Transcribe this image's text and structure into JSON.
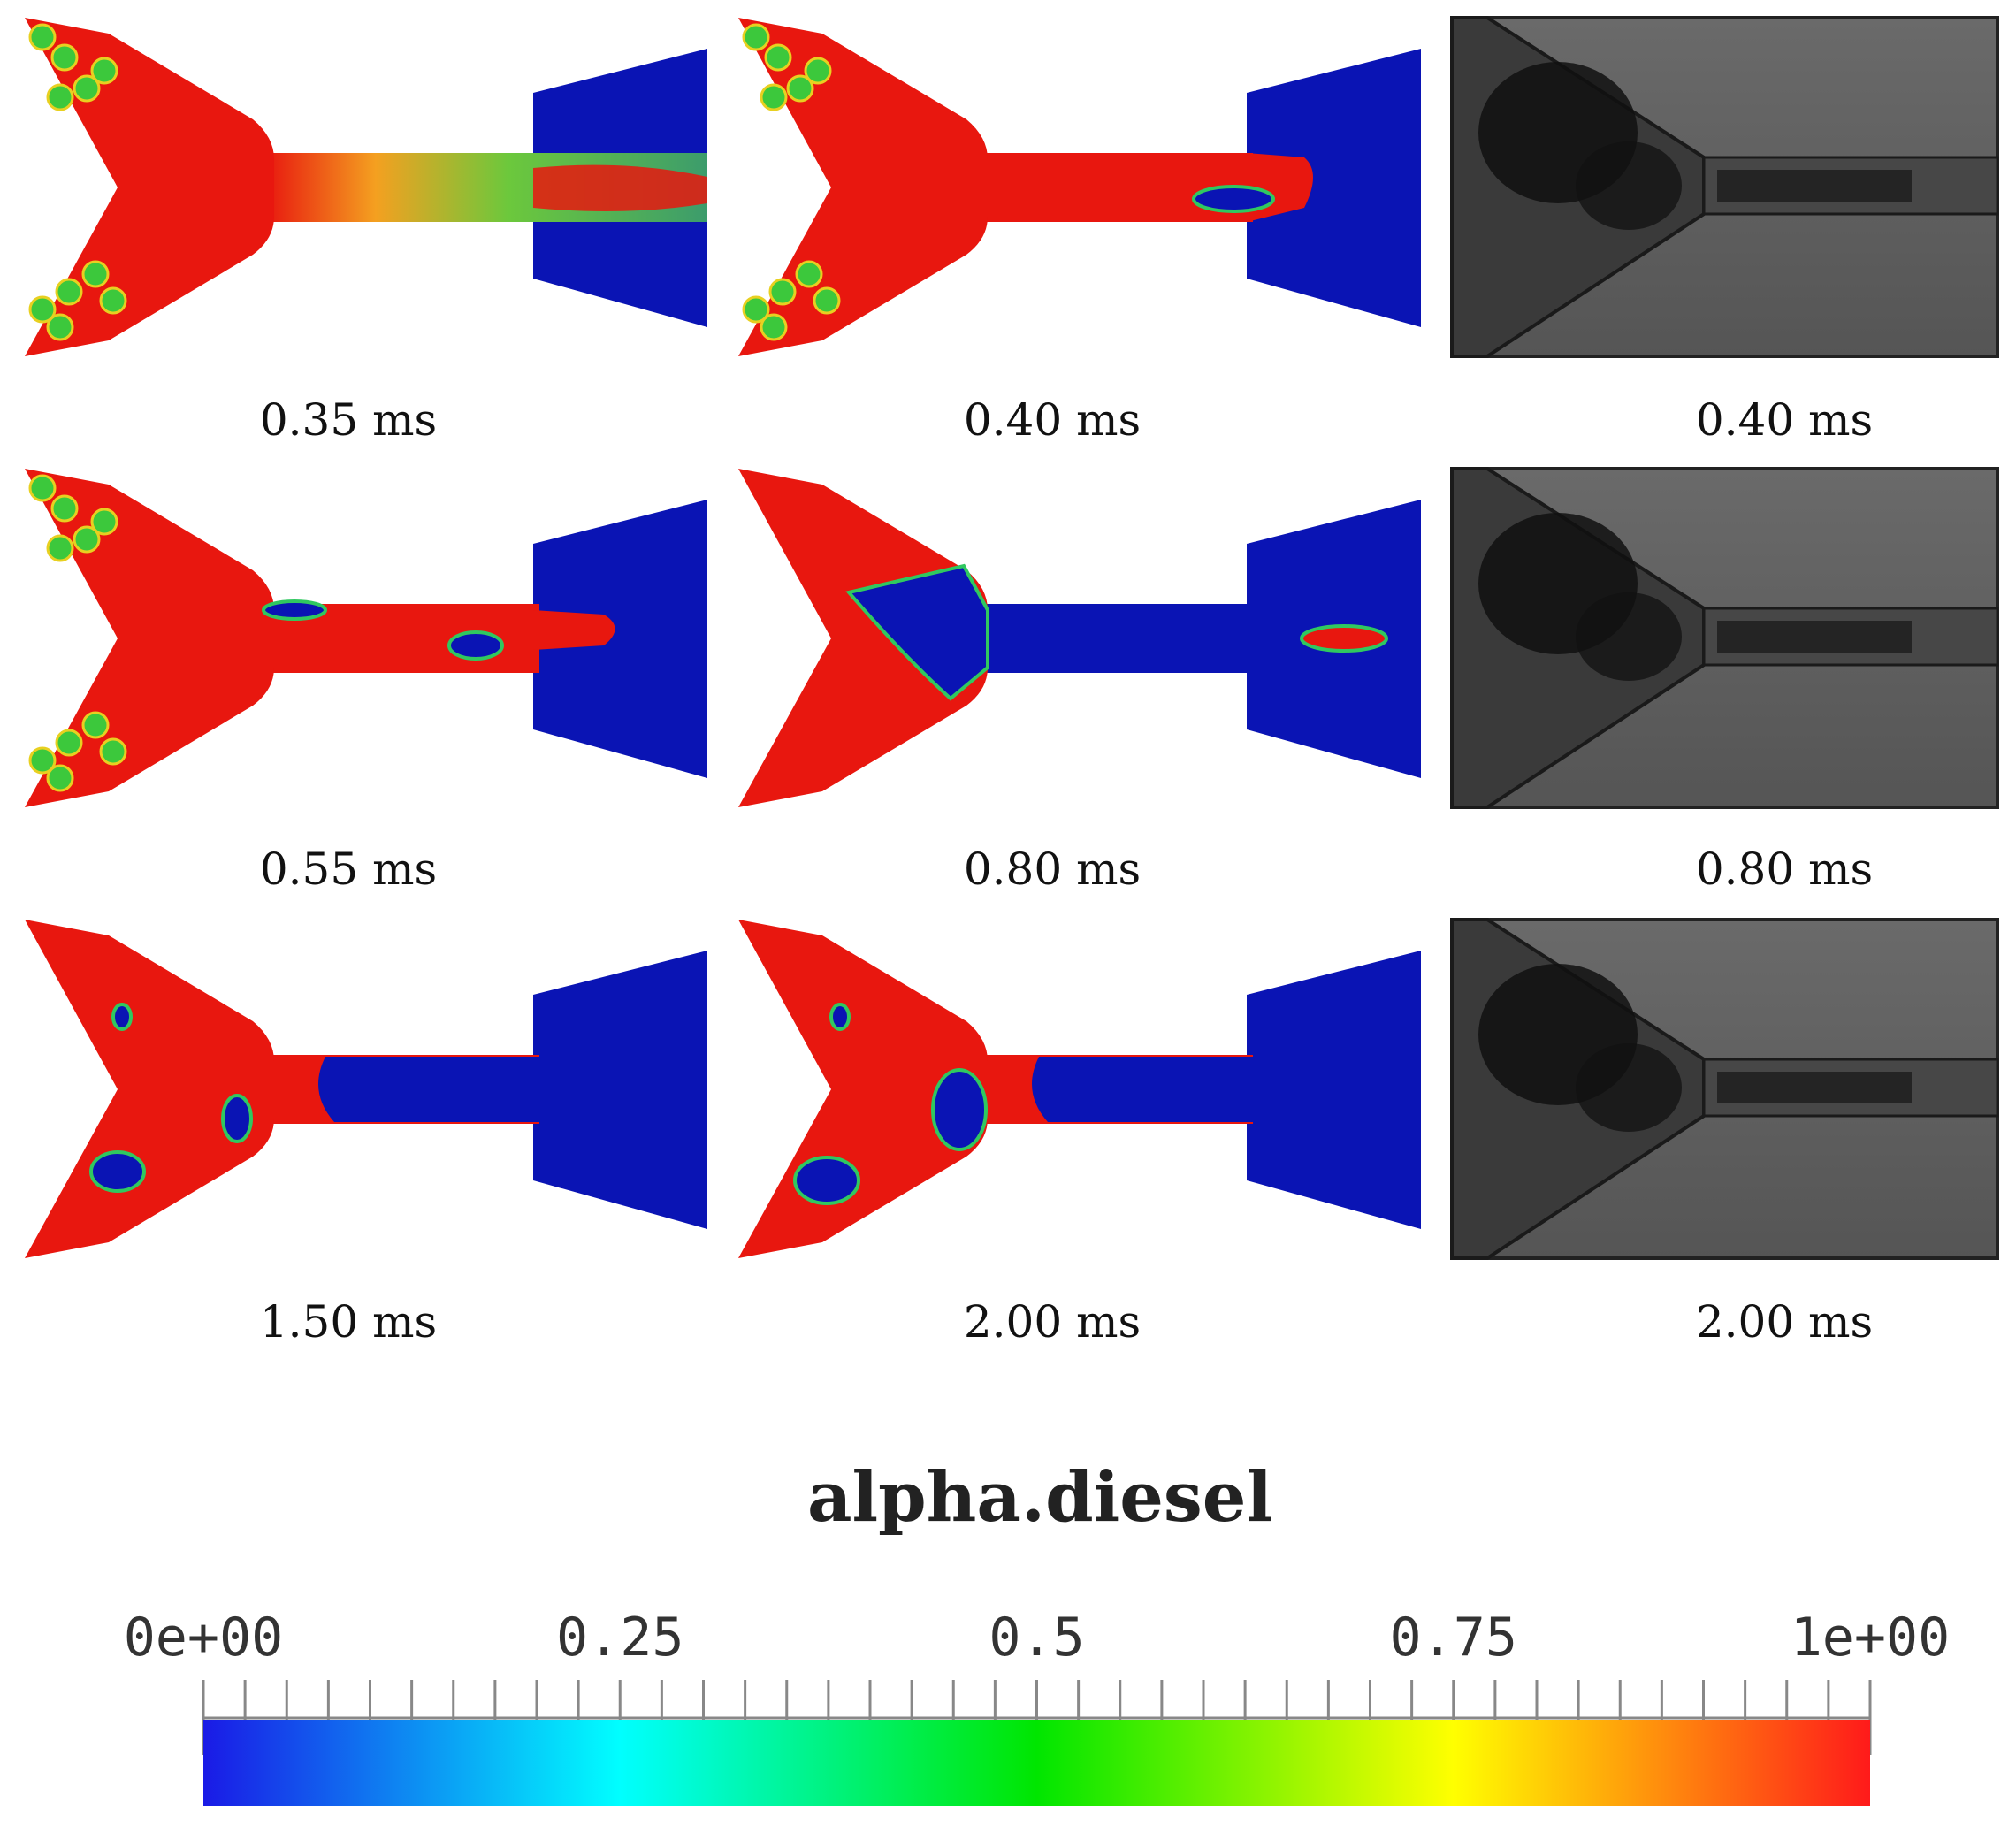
{
  "panels": [
    {
      "row": 0,
      "col": 0,
      "kind": "sim",
      "label": "0.35 ms"
    },
    {
      "row": 0,
      "col": 1,
      "kind": "sim",
      "label": "0.40 ms"
    },
    {
      "row": 0,
      "col": 2,
      "kind": "photo",
      "label": "0.40 ms"
    },
    {
      "row": 1,
      "col": 0,
      "kind": "sim",
      "label": "0.55 ms"
    },
    {
      "row": 1,
      "col": 1,
      "kind": "sim",
      "label": "0.80 ms"
    },
    {
      "row": 1,
      "col": 2,
      "kind": "photo",
      "label": "0.80 ms"
    },
    {
      "row": 2,
      "col": 0,
      "kind": "sim",
      "label": "1.50 ms"
    },
    {
      "row": 2,
      "col": 1,
      "kind": "sim",
      "label": "2.00 ms"
    },
    {
      "row": 2,
      "col": 2,
      "kind": "photo",
      "label": "2.00 ms"
    }
  ],
  "colorbar": {
    "title": "alpha.diesel",
    "ticks": [
      "0e+00",
      "0.25",
      "0.5",
      "0.75",
      "1e+00"
    ],
    "range": [
      0,
      1
    ],
    "colors": [
      "#1a1ae6",
      "#00ffff",
      "#00e600",
      "#ffff00",
      "#ff1a1a"
    ]
  },
  "colors": {
    "liquid": "#e8170f",
    "vapor": "#0a14b4",
    "mixed": "#3cc83c",
    "photo_bg": "#5e5e5e",
    "photo_dark": "#111111"
  }
}
